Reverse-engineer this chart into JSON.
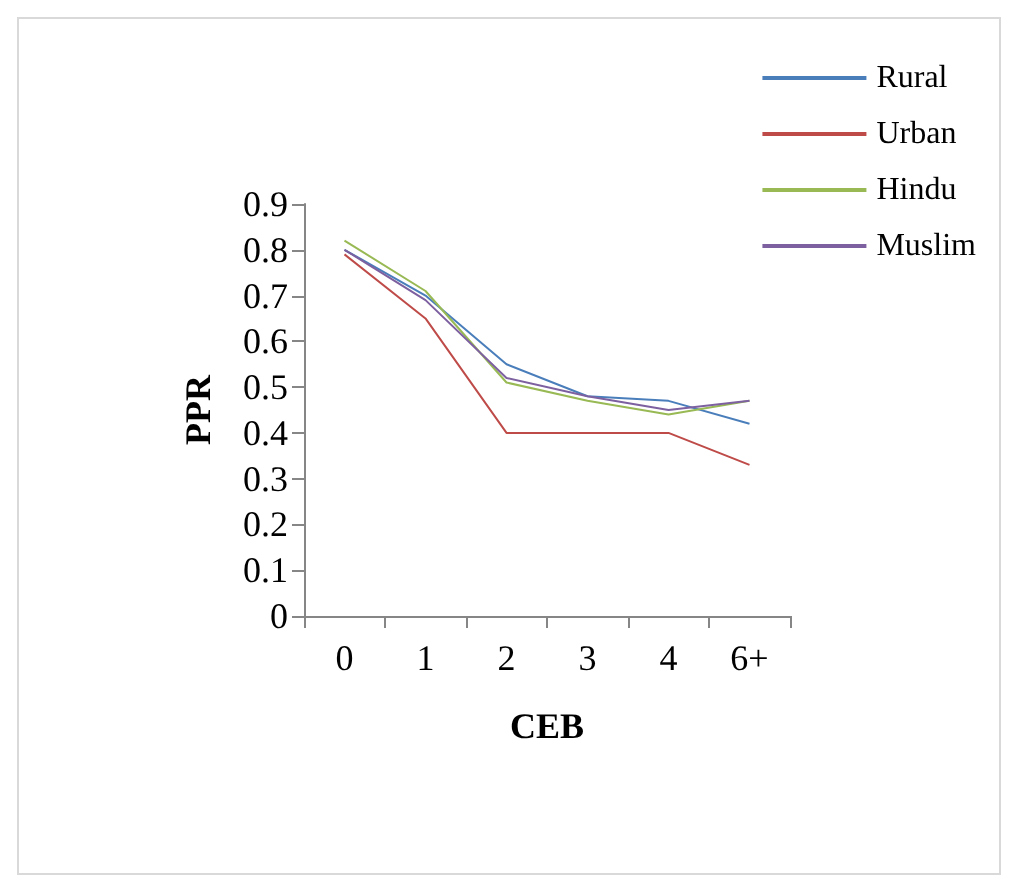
{
  "chart_data": {
    "type": "line",
    "xlabel": "CEB",
    "ylabel": "PPR",
    "categories": [
      "0",
      "1",
      "2",
      "3",
      "4",
      "6+"
    ],
    "series": [
      {
        "name": "Rural",
        "color": "#4a7ebb",
        "values": [
          0.8,
          0.7,
          0.55,
          0.48,
          0.47,
          0.42
        ]
      },
      {
        "name": "Urban",
        "color": "#be4b48",
        "values": [
          0.79,
          0.65,
          0.4,
          0.4,
          0.4,
          0.33
        ]
      },
      {
        "name": "Hindu",
        "color": "#98b954",
        "values": [
          0.82,
          0.71,
          0.51,
          0.47,
          0.44,
          0.47
        ]
      },
      {
        "name": "Muslim",
        "color": "#7d60a0",
        "values": [
          0.8,
          0.69,
          0.52,
          0.48,
          0.45,
          0.47
        ]
      }
    ],
    "ylim": [
      0,
      0.9
    ],
    "yticks": [
      0,
      0.1,
      0.2,
      0.3,
      0.4,
      0.5,
      0.6,
      0.7,
      0.8,
      0.9
    ],
    "grid": false,
    "legend": "top right",
    "marker": "none",
    "line_style": "solid"
  }
}
